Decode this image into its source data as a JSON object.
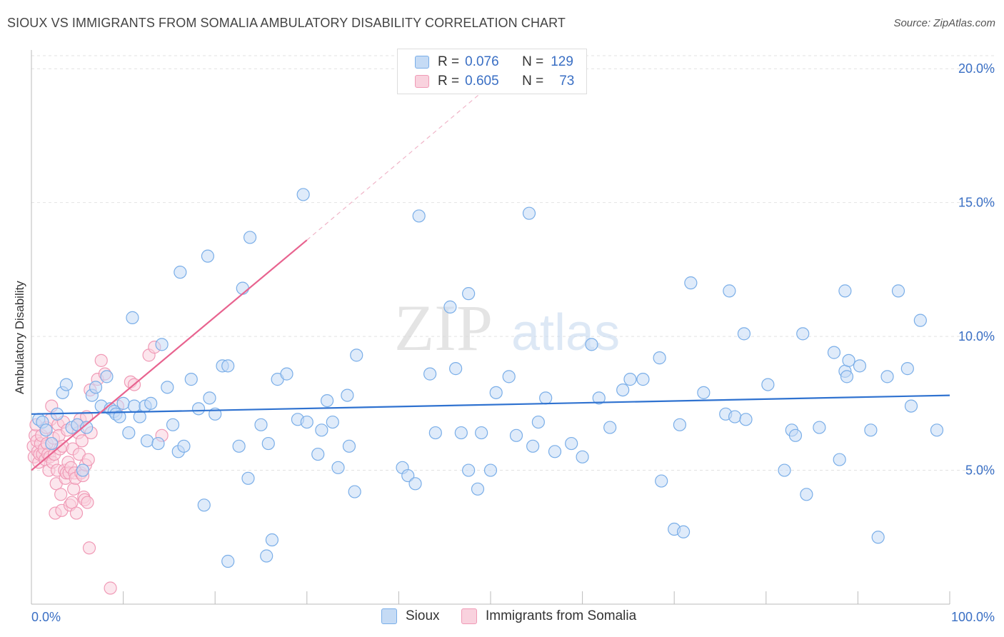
{
  "title": "SIOUX VS IMMIGRANTS FROM SOMALIA AMBULATORY DISABILITY CORRELATION CHART",
  "source": "Source: ZipAtlas.com",
  "watermark": {
    "zip": "ZIP",
    "atlas": "atlas"
  },
  "legend": {
    "sioux": {
      "r_label": "R =",
      "r_value": "0.076",
      "n_label": "N =",
      "n_value": "129"
    },
    "somalia": {
      "r_label": "R =",
      "r_value": "0.605",
      "n_label": "N =",
      "n_value": "73"
    }
  },
  "chart_data": {
    "type": "scatter",
    "title": "SIOUX VS IMMIGRANTS FROM SOMALIA AMBULATORY DISABILITY CORRELATION CHART",
    "xlabel": "",
    "ylabel": "Ambulatory Disability",
    "xlim": [
      0,
      100
    ],
    "ylim": [
      0,
      20.7
    ],
    "x_tick_labels": [
      "0.0%",
      "100.0%"
    ],
    "y_ticks": [
      5,
      10,
      15,
      20
    ],
    "y_tick_labels": [
      "5.0%",
      "10.0%",
      "15.0%",
      "20.0%"
    ],
    "grid": true,
    "legend_position": "bottom",
    "series": [
      {
        "name": "Sioux",
        "color": "#7aaee8",
        "fill": "#c5dbf5",
        "trend": {
          "x0": 0,
          "y0": 7.1,
          "x1": 100,
          "y1": 7.8,
          "color": "#2f72d0"
        },
        "points": [
          [
            0.8,
            6.9
          ],
          [
            1.2,
            6.8
          ],
          [
            1.6,
            6.5
          ],
          [
            2.2,
            6.0
          ],
          [
            2.8,
            7.1
          ],
          [
            3.4,
            7.9
          ],
          [
            3.8,
            8.2
          ],
          [
            4.4,
            6.6
          ],
          [
            5.0,
            6.7
          ],
          [
            5.6,
            5.0
          ],
          [
            6.0,
            6.6
          ],
          [
            6.6,
            7.8
          ],
          [
            7.0,
            8.1
          ],
          [
            7.6,
            7.4
          ],
          [
            8.2,
            8.5
          ],
          [
            8.6,
            7.3
          ],
          [
            9.0,
            7.2
          ],
          [
            9.2,
            7.1
          ],
          [
            9.6,
            7.0
          ],
          [
            10.0,
            7.5
          ],
          [
            10.6,
            6.4
          ],
          [
            11.0,
            10.7
          ],
          [
            11.2,
            7.4
          ],
          [
            11.8,
            7.0
          ],
          [
            12.4,
            7.4
          ],
          [
            12.6,
            6.1
          ],
          [
            13.0,
            7.5
          ],
          [
            13.8,
            6.0
          ],
          [
            14.2,
            9.7
          ],
          [
            14.8,
            8.1
          ],
          [
            15.4,
            6.7
          ],
          [
            16.0,
            5.7
          ],
          [
            16.2,
            12.4
          ],
          [
            16.6,
            5.9
          ],
          [
            17.4,
            8.4
          ],
          [
            18.2,
            7.3
          ],
          [
            18.8,
            3.7
          ],
          [
            19.2,
            13.0
          ],
          [
            19.4,
            7.7
          ],
          [
            20.0,
            7.1
          ],
          [
            20.8,
            8.9
          ],
          [
            21.4,
            8.9
          ],
          [
            21.4,
            1.6
          ],
          [
            22.6,
            5.9
          ],
          [
            23.0,
            11.8
          ],
          [
            23.6,
            4.7
          ],
          [
            23.8,
            13.7
          ],
          [
            25.0,
            6.7
          ],
          [
            25.6,
            1.8
          ],
          [
            25.8,
            6.0
          ],
          [
            26.2,
            2.4
          ],
          [
            26.8,
            8.4
          ],
          [
            27.8,
            8.6
          ],
          [
            29.0,
            6.9
          ],
          [
            29.6,
            15.3
          ],
          [
            30.0,
            6.8
          ],
          [
            31.2,
            5.6
          ],
          [
            31.6,
            6.5
          ],
          [
            32.2,
            7.6
          ],
          [
            32.8,
            6.8
          ],
          [
            33.4,
            5.1
          ],
          [
            34.4,
            7.8
          ],
          [
            34.6,
            5.9
          ],
          [
            35.2,
            4.2
          ],
          [
            35.4,
            9.3
          ],
          [
            40.4,
            5.1
          ],
          [
            41.0,
            4.8
          ],
          [
            41.8,
            4.5
          ],
          [
            42.2,
            14.5
          ],
          [
            43.4,
            8.6
          ],
          [
            44.0,
            6.4
          ],
          [
            45.6,
            11.1
          ],
          [
            46.2,
            8.8
          ],
          [
            46.8,
            6.4
          ],
          [
            47.6,
            5.0
          ],
          [
            47.6,
            11.6
          ],
          [
            48.6,
            4.3
          ],
          [
            49.0,
            6.4
          ],
          [
            50.0,
            5.0
          ],
          [
            50.6,
            7.9
          ],
          [
            52.0,
            8.5
          ],
          [
            52.8,
            6.3
          ],
          [
            54.2,
            14.6
          ],
          [
            54.6,
            5.9
          ],
          [
            55.2,
            6.8
          ],
          [
            56.0,
            7.7
          ],
          [
            57.0,
            5.7
          ],
          [
            58.8,
            6.0
          ],
          [
            60.0,
            5.5
          ],
          [
            61.0,
            9.7
          ],
          [
            61.8,
            7.7
          ],
          [
            63.0,
            6.6
          ],
          [
            64.4,
            8.0
          ],
          [
            65.2,
            8.4
          ],
          [
            66.6,
            8.4
          ],
          [
            68.4,
            9.2
          ],
          [
            68.6,
            4.6
          ],
          [
            70.0,
            2.8
          ],
          [
            70.6,
            6.7
          ],
          [
            71.0,
            2.7
          ],
          [
            71.8,
            12.0
          ],
          [
            73.2,
            7.9
          ],
          [
            75.6,
            7.1
          ],
          [
            76.0,
            11.7
          ],
          [
            76.6,
            7.0
          ],
          [
            77.8,
            6.9
          ],
          [
            77.6,
            10.1
          ],
          [
            80.2,
            8.2
          ],
          [
            82.0,
            5.0
          ],
          [
            82.8,
            6.5
          ],
          [
            83.2,
            6.3
          ],
          [
            84.0,
            10.1
          ],
          [
            84.4,
            4.1
          ],
          [
            85.8,
            6.6
          ],
          [
            87.4,
            9.4
          ],
          [
            88.0,
            5.4
          ],
          [
            88.6,
            11.7
          ],
          [
            88.6,
            8.7
          ],
          [
            88.8,
            8.5
          ],
          [
            89.0,
            9.1
          ],
          [
            90.2,
            8.9
          ],
          [
            91.4,
            6.5
          ],
          [
            92.2,
            2.5
          ],
          [
            93.2,
            8.5
          ],
          [
            94.4,
            11.7
          ],
          [
            95.4,
            8.8
          ],
          [
            95.8,
            7.4
          ],
          [
            96.8,
            10.6
          ],
          [
            98.6,
            6.5
          ]
        ]
      },
      {
        "name": "Immigrants from Somalia",
        "color": "#f09ab6",
        "fill": "#f9d2de",
        "trend": {
          "x0": 0,
          "y0": 5.0,
          "x1": 30,
          "y1": 13.6,
          "color": "#e8638f",
          "dashed_to_x": 50,
          "dashed_to_y": 19.4
        },
        "points": [
          [
            0.2,
            5.9
          ],
          [
            0.3,
            5.5
          ],
          [
            0.4,
            6.3
          ],
          [
            0.5,
            6.7
          ],
          [
            0.6,
            6.1
          ],
          [
            0.7,
            5.7
          ],
          [
            0.8,
            5.3
          ],
          [
            0.9,
            5.6
          ],
          [
            1.0,
            6.0
          ],
          [
            1.1,
            6.3
          ],
          [
            1.2,
            5.6
          ],
          [
            1.4,
            5.8
          ],
          [
            1.5,
            5.4
          ],
          [
            1.6,
            6.6
          ],
          [
            1.7,
            6.0
          ],
          [
            1.8,
            5.6
          ],
          [
            1.9,
            5.0
          ],
          [
            2.0,
            5.5
          ],
          [
            2.1,
            6.9
          ],
          [
            2.2,
            7.4
          ],
          [
            2.3,
            5.3
          ],
          [
            2.4,
            6.2
          ],
          [
            2.5,
            5.6
          ],
          [
            2.6,
            3.4
          ],
          [
            2.7,
            4.5
          ],
          [
            2.8,
            5.0
          ],
          [
            2.9,
            6.7
          ],
          [
            3.0,
            6.3
          ],
          [
            3.1,
            5.8
          ],
          [
            3.2,
            4.1
          ],
          [
            3.3,
            3.5
          ],
          [
            3.4,
            5.9
          ],
          [
            3.5,
            6.8
          ],
          [
            3.6,
            5.0
          ],
          [
            3.7,
            4.7
          ],
          [
            3.8,
            4.9
          ],
          [
            3.9,
            6.5
          ],
          [
            4.0,
            5.3
          ],
          [
            4.1,
            4.9
          ],
          [
            4.2,
            3.7
          ],
          [
            4.3,
            5.1
          ],
          [
            4.4,
            3.8
          ],
          [
            4.5,
            5.8
          ],
          [
            4.6,
            4.3
          ],
          [
            4.7,
            4.9
          ],
          [
            4.8,
            4.7
          ],
          [
            4.9,
            3.4
          ],
          [
            5.0,
            6.7
          ],
          [
            5.1,
            6.4
          ],
          [
            5.2,
            5.6
          ],
          [
            5.3,
            6.9
          ],
          [
            5.4,
            4.9
          ],
          [
            5.5,
            6.1
          ],
          [
            5.6,
            4.8
          ],
          [
            5.7,
            4.0
          ],
          [
            5.8,
            3.9
          ],
          [
            5.9,
            5.2
          ],
          [
            6.0,
            7.0
          ],
          [
            6.1,
            3.8
          ],
          [
            6.2,
            5.4
          ],
          [
            6.3,
            2.1
          ],
          [
            6.4,
            8.0
          ],
          [
            6.5,
            6.4
          ],
          [
            7.2,
            8.4
          ],
          [
            7.6,
            9.1
          ],
          [
            8.0,
            8.6
          ],
          [
            8.6,
            0.6
          ],
          [
            9.4,
            7.4
          ],
          [
            10.8,
            8.3
          ],
          [
            11.2,
            8.2
          ],
          [
            12.8,
            9.3
          ],
          [
            13.4,
            9.6
          ],
          [
            14.2,
            6.3
          ]
        ]
      }
    ]
  }
}
